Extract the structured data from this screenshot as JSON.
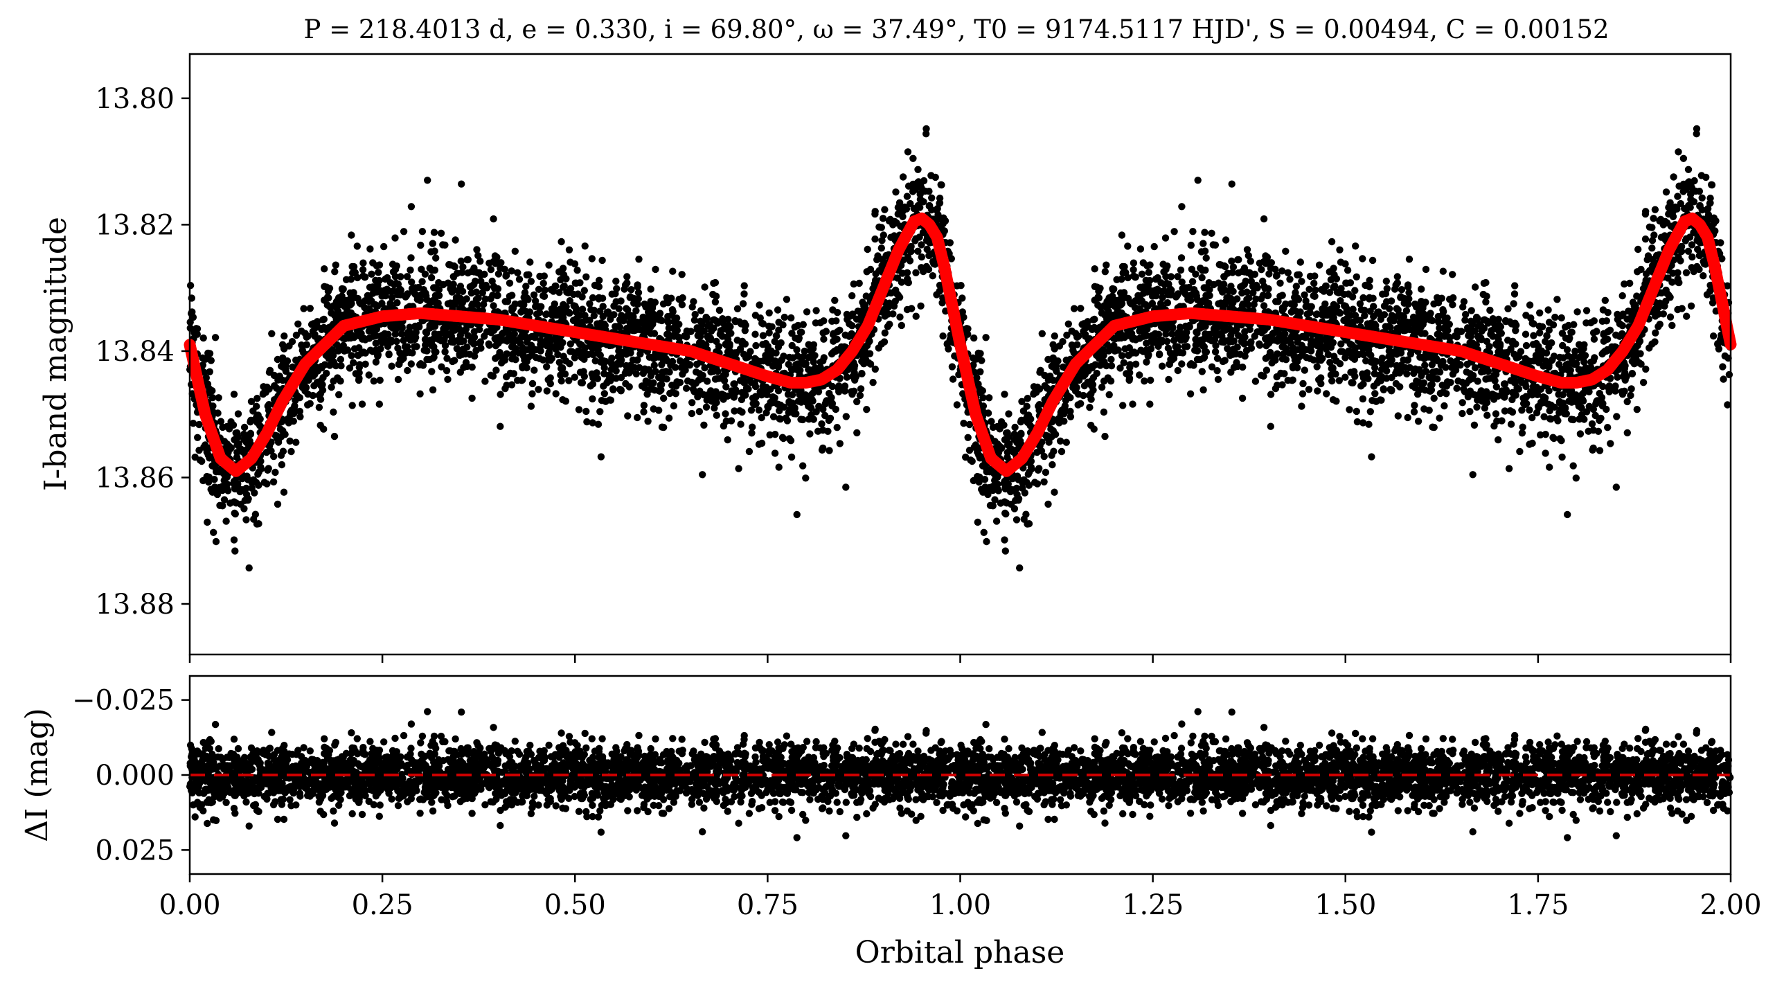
{
  "chart_data": [
    {
      "type": "scatter",
      "panel": "top",
      "title": "P = 218.4013 d, e = 0.330, i = 69.80°, ω = 37.49°, T0 = 9174.5117 HJD', S = 0.00494, C = 0.00152",
      "ylabel": "I-band magnitude",
      "xlim": [
        0.0,
        2.0
      ],
      "ylim": [
        13.793,
        13.888
      ],
      "y_inverted": true,
      "y_ticks": [
        "13.80",
        "13.82",
        "13.84",
        "13.86",
        "13.88"
      ],
      "x_tick_values": [
        0.0,
        0.25,
        0.5,
        0.75,
        1.0,
        1.25,
        1.5,
        1.75,
        2.0
      ],
      "series": [
        {
          "role": "observations",
          "marker": "dot",
          "color": "#000000",
          "points_per_cycle_approx": 3000,
          "model_reference": [
            [
              0.0,
              13.839
            ],
            [
              0.02,
              13.85
            ],
            [
              0.06,
              13.859
            ],
            [
              0.1,
              13.853
            ],
            [
              0.15,
              13.842
            ],
            [
              0.2,
              13.836
            ],
            [
              0.3,
              13.834
            ],
            [
              0.4,
              13.835
            ],
            [
              0.5,
              13.837
            ],
            [
              0.6,
              13.839
            ],
            [
              0.7,
              13.842
            ],
            [
              0.8,
              13.845
            ],
            [
              0.85,
              13.841
            ],
            [
              0.9,
              13.83
            ],
            [
              0.95,
              13.819
            ],
            [
              0.97,
              13.822
            ],
            [
              1.0,
              13.839
            ]
          ]
        },
        {
          "role": "model",
          "type": "line",
          "color": "#ff0000",
          "x": [
            0.0,
            0.02,
            0.04,
            0.06,
            0.08,
            0.1,
            0.12,
            0.15,
            0.2,
            0.25,
            0.3,
            0.35,
            0.4,
            0.45,
            0.5,
            0.55,
            0.6,
            0.65,
            0.7,
            0.75,
            0.78,
            0.8,
            0.82,
            0.84,
            0.86,
            0.88,
            0.9,
            0.92,
            0.94,
            0.95,
            0.96,
            0.97,
            0.98,
            0.99,
            1.0
          ],
          "y": [
            13.839,
            13.85,
            13.857,
            13.859,
            13.857,
            13.853,
            13.848,
            13.842,
            13.836,
            13.8345,
            13.834,
            13.8345,
            13.835,
            13.836,
            13.837,
            13.838,
            13.839,
            13.84,
            13.842,
            13.844,
            13.845,
            13.845,
            13.8445,
            13.843,
            13.84,
            13.836,
            13.83,
            13.824,
            13.8195,
            13.819,
            13.82,
            13.822,
            13.827,
            13.833,
            13.839
          ],
          "period_repeat": 1.0
        }
      ]
    },
    {
      "type": "scatter",
      "panel": "bottom",
      "xlabel": "Orbital phase",
      "ylabel": "ΔI (mag)",
      "xlim": [
        0.0,
        2.0
      ],
      "ylim": [
        -0.033,
        0.033
      ],
      "y_inverted": true,
      "y_ticks": [
        "−0.025",
        "0.000",
        "0.025"
      ],
      "x_ticks": [
        "0.00",
        "0.25",
        "0.50",
        "0.75",
        "1.00",
        "1.25",
        "1.50",
        "1.75",
        "2.00"
      ],
      "residual_scatter_sigma_approx": 0.005,
      "reference_line": {
        "y": 0.0,
        "style": "dashed",
        "color": "#cc0000"
      }
    }
  ]
}
